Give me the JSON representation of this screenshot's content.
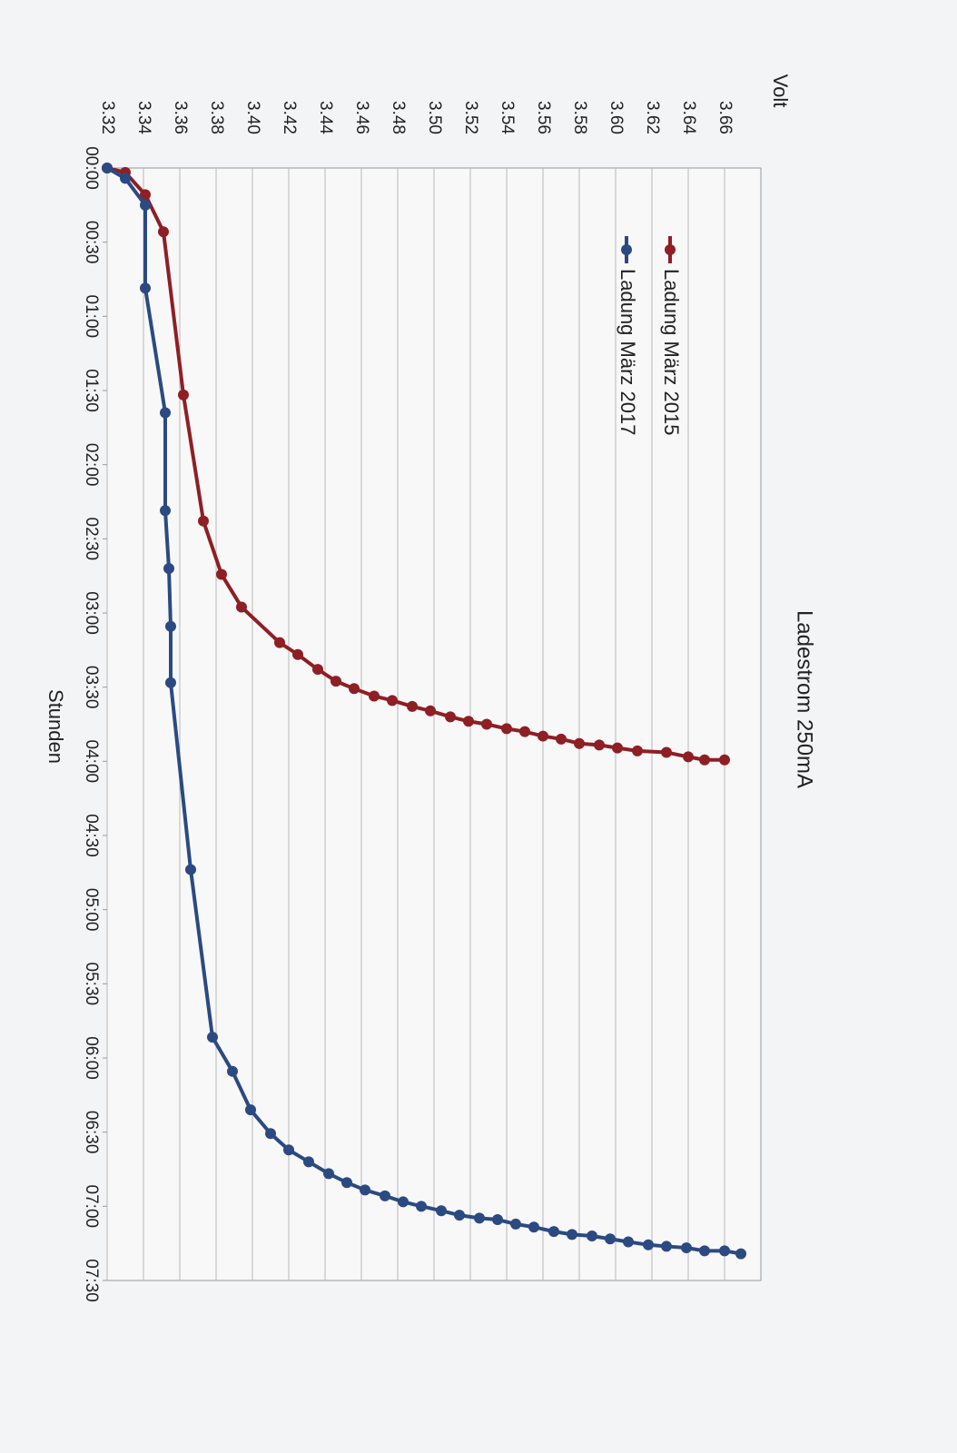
{
  "chart_data": {
    "type": "line",
    "title": "Ladestrom 250mA",
    "ylabel": "Volt",
    "xlabel": "Stunden",
    "xlim": [
      0,
      7.5
    ],
    "ylim": [
      3.32,
      3.68
    ],
    "xticks": [
      {
        "value": 0,
        "label": "00:00"
      },
      {
        "value": 0.5,
        "label": "00:30"
      },
      {
        "value": 1,
        "label": "01:00"
      },
      {
        "value": 1.5,
        "label": "01:30"
      },
      {
        "value": 2,
        "label": "02:00"
      },
      {
        "value": 2.5,
        "label": "02:30"
      },
      {
        "value": 3,
        "label": "03:00"
      },
      {
        "value": 3.5,
        "label": "03:30"
      },
      {
        "value": 4,
        "label": "04:00"
      },
      {
        "value": 4.5,
        "label": "04:30"
      },
      {
        "value": 5,
        "label": "05:00"
      },
      {
        "value": 5.5,
        "label": "05:30"
      },
      {
        "value": 6,
        "label": "06:00"
      },
      {
        "value": 6.5,
        "label": "06:30"
      },
      {
        "value": 7,
        "label": "07:00"
      },
      {
        "value": 7.5,
        "label": "07:30"
      }
    ],
    "yticks": [
      3.32,
      3.34,
      3.36,
      3.38,
      {
        "value": 3.4,
        "label": "3.40"
      },
      3.42,
      3.44,
      3.46,
      3.48,
      {
        "value": 3.5,
        "label": "3.50"
      },
      3.52,
      3.54,
      3.56,
      3.58,
      {
        "value": 3.6,
        "label": "3.60"
      },
      3.62,
      3.64,
      3.66
    ],
    "grid": true,
    "series": [
      {
        "name": "Ladung März 2015",
        "color": "#8e1f24",
        "x": [
          0,
          0.03,
          0.18,
          0.43,
          1.53,
          2.38,
          2.74,
          2.96,
          3.2,
          3.28,
          3.38,
          3.46,
          3.51,
          3.56,
          3.59,
          3.63,
          3.66,
          3.7,
          3.73,
          3.75,
          3.78,
          3.8,
          3.83,
          3.85,
          3.88,
          3.89,
          3.91,
          3.93,
          3.94,
          3.97,
          3.99,
          3.99
        ],
        "values": [
          3.32,
          3.33,
          3.341,
          3.351,
          3.362,
          3.373,
          3.383,
          3.394,
          3.415,
          3.425,
          3.436,
          3.446,
          3.456,
          3.467,
          3.477,
          3.488,
          3.498,
          3.509,
          3.519,
          3.529,
          3.54,
          3.55,
          3.56,
          3.57,
          3.58,
          3.591,
          3.601,
          3.612,
          3.628,
          3.64,
          3.649,
          3.66
        ]
      },
      {
        "name": "Ladung März 2017",
        "color": "#2b4a82",
        "x": [
          0,
          0.07,
          0.25,
          0.81,
          1.65,
          2.31,
          2.7,
          3.09,
          3.47,
          4.73,
          5.86,
          6.09,
          6.35,
          6.51,
          6.62,
          6.7,
          6.78,
          6.84,
          6.89,
          6.93,
          6.97,
          7.0,
          7.03,
          7.06,
          7.08,
          7.09,
          7.12,
          7.14,
          7.17,
          7.19,
          7.2,
          7.22,
          7.24,
          7.26,
          7.27,
          7.28,
          7.3,
          7.3,
          7.32
        ],
        "values": [
          3.32,
          3.33,
          3.341,
          3.341,
          3.352,
          3.352,
          3.354,
          3.355,
          3.355,
          3.366,
          3.378,
          3.389,
          3.399,
          3.41,
          3.42,
          3.431,
          3.442,
          3.452,
          3.462,
          3.473,
          3.483,
          3.493,
          3.504,
          3.514,
          3.525,
          3.535,
          3.545,
          3.555,
          3.566,
          3.576,
          3.587,
          3.597,
          3.607,
          3.618,
          3.628,
          3.639,
          3.649,
          3.66,
          3.669
        ]
      }
    ]
  }
}
